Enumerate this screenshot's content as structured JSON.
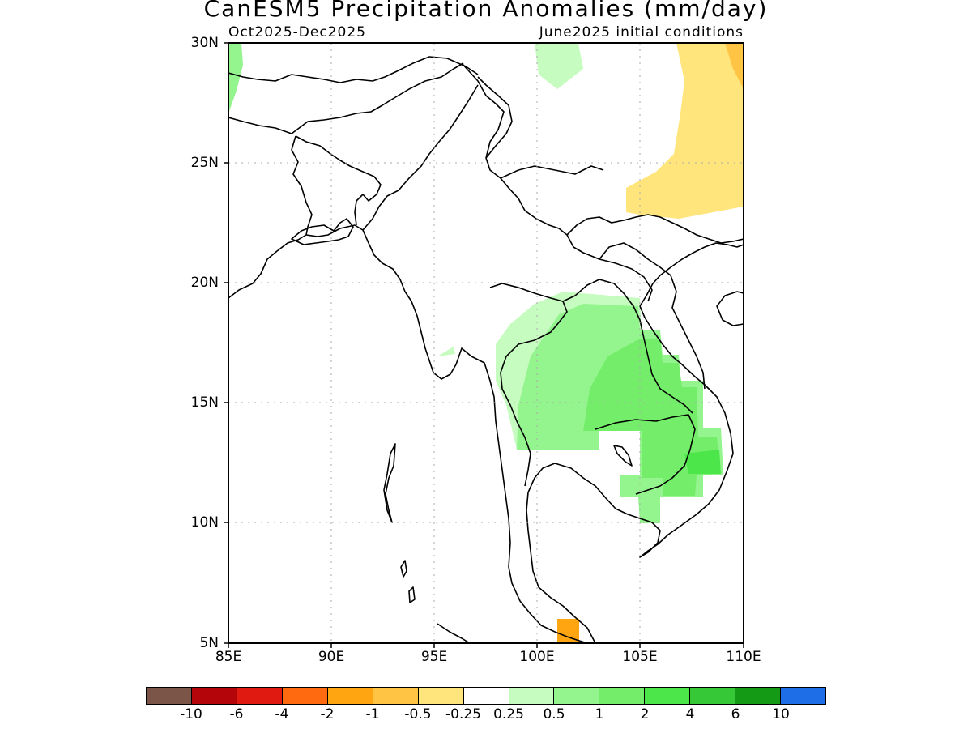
{
  "title": "CanESM5 Precipitation Anomalies (mm/day)",
  "period": "Oct2025-Dec2025",
  "init": "June2025 initial conditions",
  "map": {
    "lon_range": [
      85,
      110
    ],
    "lat_range": [
      5,
      30
    ],
    "lat_ticks": [
      "30N",
      "25N",
      "20N",
      "15N",
      "10N",
      "5N"
    ],
    "lon_ticks": [
      "85E",
      "90E",
      "95E",
      "100E",
      "105E",
      "110E"
    ],
    "grid": "dotted"
  },
  "colorbar": {
    "colors": [
      "#7a5548",
      "#b4050a",
      "#e01a10",
      "#ff6a10",
      "#ffa512",
      "#ffc443",
      "#ffe57c",
      "#ffffff",
      "#c6fcc0",
      "#94f58e",
      "#74ee6a",
      "#4ce64a",
      "#36c836",
      "#149a14",
      "#1e6ee8"
    ],
    "labels": [
      "-10",
      "-6",
      "-4",
      "-2",
      "-1",
      "-0.5",
      "-0.25",
      "0.25",
      "0.5",
      "1",
      "2",
      "4",
      "6",
      "10"
    ]
  }
}
